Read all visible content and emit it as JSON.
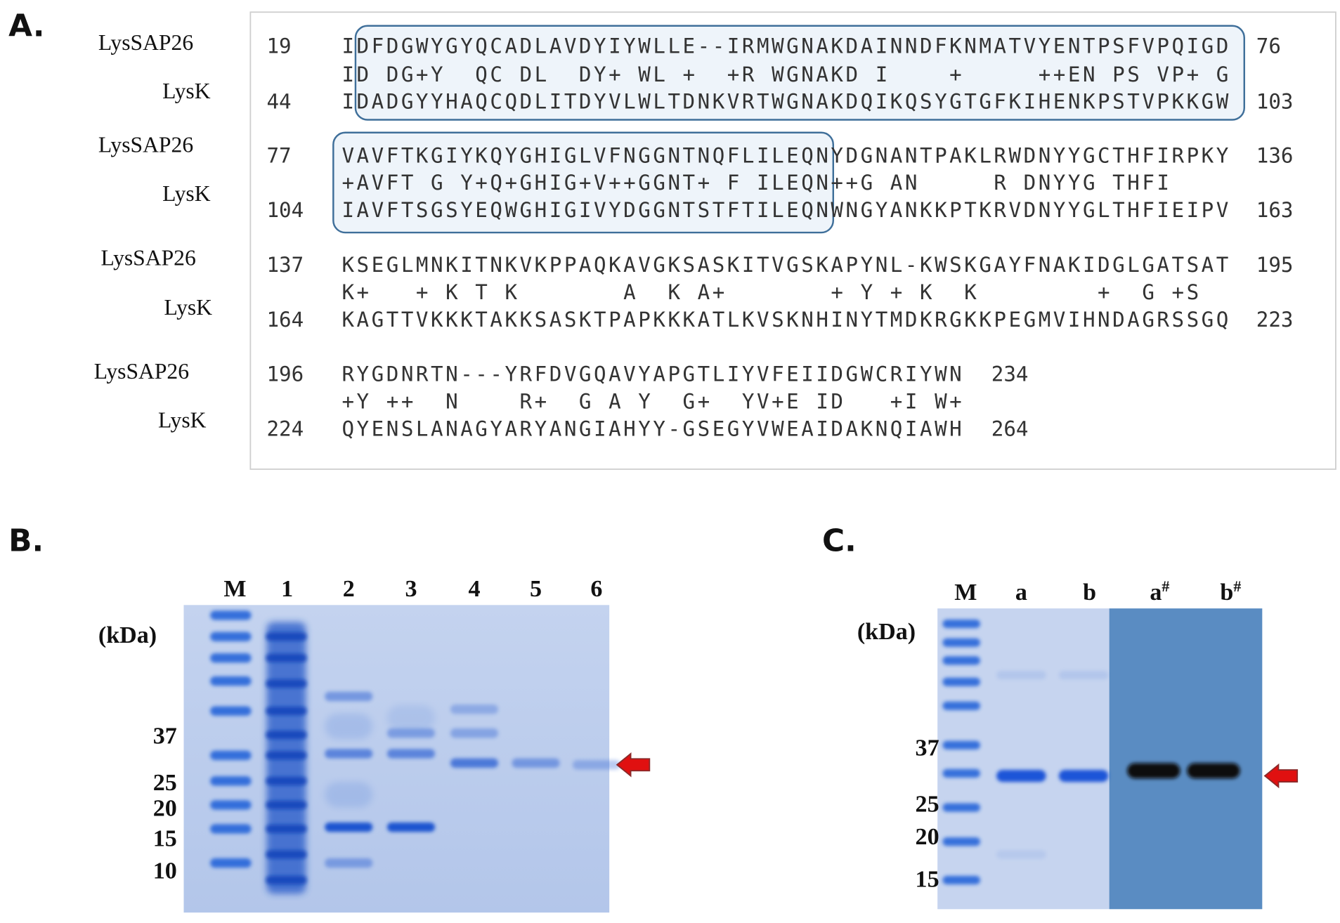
{
  "panel_a": {
    "label": "A.",
    "blocks": [
      {
        "query_name": "LysSAP26",
        "query_start": 19,
        "query_seq": "IDFDGWYGYQCADLAVDYIYWLLE--IRMWGNAKDAINNDFKNMATVYENTPSFVPQIGD",
        "query_end": 76,
        "midline": "ID DG+Y  QC DL  DY+ WL +  +R WGNAKD I    +     ++EN PS VP+ G",
        "subject_name": "LysK",
        "subject_start": 44,
        "subject_seq": "IDADGYYHAQCQDLITDYVLWLTDNKVRTWGNAKDQIKQSYGTGFKIHENKPSTVPKKGW",
        "subject_end": 103
      },
      {
        "query_name": "LysSAP26",
        "query_start": 77,
        "query_seq": "VAVFTKGIYKQYGHIGLVFNGGNTNQFLILEQNYDGNANTPAKLRWDNYYGCTHFIRPKY",
        "query_end": 136,
        "midline": "+AVFT G Y+Q+GHIG+V++GGNT+ F ILEQN++G AN     R DNYYG THFI",
        "subject_name": "LysK",
        "subject_start": 104,
        "subject_seq": "IAVFTSGSYEQWGHIGIVYDGGNTSTFTILEQNWNGYANKKPTKRVDNYYGLTHFIEIPV",
        "subject_end": 163
      },
      {
        "query_name": "LysSAP26",
        "query_start": 137,
        "query_seq": "KSEGLMNKITNKVKPPAQKAVGKSASKITVGSKAPYNL-KWSKGAYFNAKIDGLGATSAT",
        "query_end": 195,
        "midline": "K+   + K T K       A  K A+       + Y + K  K        +  G +S",
        "subject_name": "LysK",
        "subject_start": 164,
        "subject_seq": "KAGTTVKKKTAKKSASKTPAPKKKATLKVSKNHINYTMDKRGKKPEGMVIHNDAGRSSGQ",
        "subject_end": 223
      },
      {
        "query_name": "LysSAP26",
        "query_start": 196,
        "query_seq": "RYGDNRTN---YRFDVGQAVYAPGTLIYVFEIIDGWCRIYWN",
        "query_end": 234,
        "midline": "+Y ++  N    R+  G A Y  G+  YV+E ID   +I W+",
        "subject_name": "LysK",
        "subject_start": 224,
        "subject_seq": "QYENSLANAGYARYANGIAHYY-GSEGYVWEAIDAKNQIAWH",
        "subject_end": 264
      }
    ]
  },
  "panel_b": {
    "label": "B.",
    "unit": "(kDa)",
    "lanes": [
      "M",
      "1",
      "2",
      "3",
      "4",
      "5",
      "6"
    ],
    "markers": [
      37,
      25,
      20,
      15,
      10
    ]
  },
  "panel_c": {
    "label": "C.",
    "unit": "(kDa)",
    "lanes": [
      {
        "text": "M"
      },
      {
        "text": "a"
      },
      {
        "text": "b"
      },
      {
        "text": "a",
        "sup": "#"
      },
      {
        "text": "b",
        "sup": "#"
      }
    ],
    "markers": [
      37,
      25,
      20,
      15
    ]
  }
}
